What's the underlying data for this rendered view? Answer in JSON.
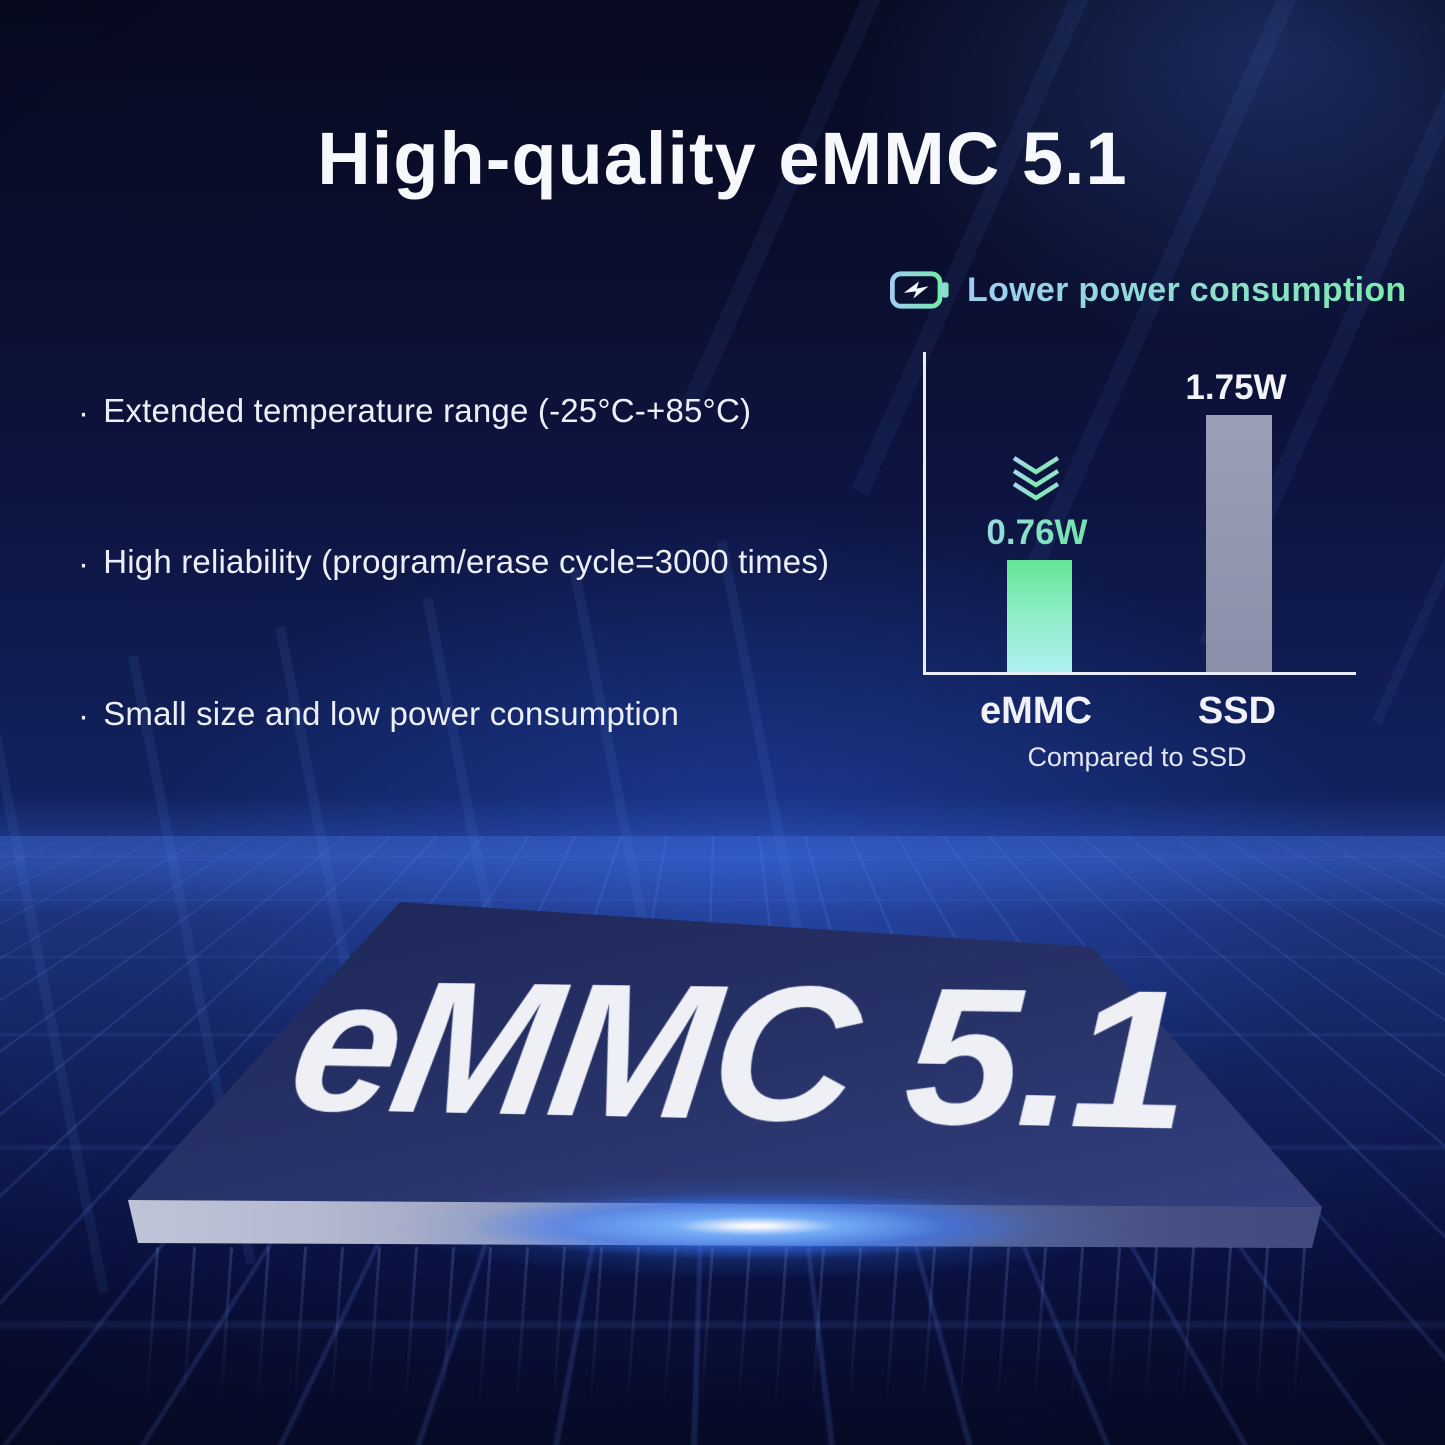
{
  "page": {
    "title": "High-quality eMMC 5.1"
  },
  "features": {
    "bullet": "·",
    "items": [
      "Extended temperature range (-25°C-+85°C)",
      "High reliability (program/erase cycle=3000 times)",
      "Small size and low power consumption"
    ]
  },
  "chart_data": {
    "type": "bar",
    "title": "Lower power consumption",
    "categories": [
      "eMMC",
      "SSD"
    ],
    "values": [
      0.76,
      1.75
    ],
    "value_labels": [
      "0.76W",
      "1.75W"
    ],
    "unit": "W",
    "xlabel": "",
    "ylabel": "",
    "ylim": [
      0,
      2.2
    ],
    "grid": false,
    "legend_position": "top-right",
    "caption": "Compared to SSD",
    "bar_colors": [
      "#6ee89b",
      "#8b8fa9"
    ],
    "annotation": "triple chevron-down marker above eMMC bar"
  },
  "chip": {
    "label": "eMMC 5.1"
  },
  "icons": {
    "battery": "battery-charging-icon",
    "chevrons": "triple-chevron-down-icon"
  },
  "colors": {
    "background_navy": "#0d1440",
    "accent_green": "#6ee89b",
    "accent_cyan": "#aeeff1",
    "accent_blue_glow": "#377dff",
    "ssd_bar_gray": "#8b8fa9",
    "text_white": "#f7f8fc"
  }
}
